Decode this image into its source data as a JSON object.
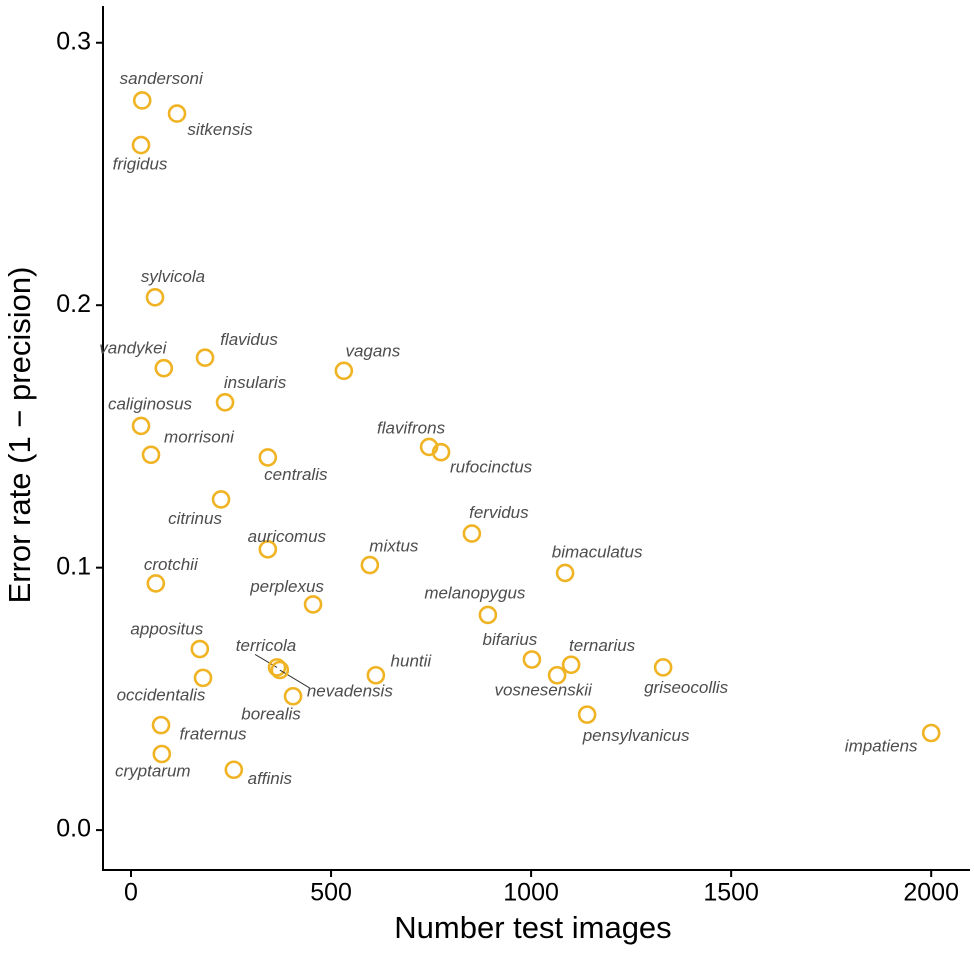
{
  "chart_data": {
    "type": "scatter",
    "xlabel": "Number test images",
    "ylabel": "Error rate (1 − precision)",
    "color": "#f0b323",
    "xlim": [
      -70,
      2097
    ],
    "ylim": [
      -0.0152,
      0.314
    ],
    "xticks": [
      0,
      500,
      1000,
      1500,
      2000
    ],
    "yticks": [
      {
        "value": 0,
        "label": "0.0"
      },
      0.1,
      0.2,
      0.3
    ],
    "labels": [
      "sandersoni",
      "sitkensis",
      "frigidus",
      "sylvicola",
      "vandykei",
      "flavidus",
      "vagans",
      "insularis",
      "caliginosus",
      "morrisoni",
      "centralis",
      "flavifrons",
      "rufocinctus",
      "citrinus",
      "fervidus",
      "auricomus",
      "mixtus",
      "crotchii",
      "bimaculatus",
      "perplexus",
      "melanopygus",
      "appositus",
      "terricola",
      "nevadensis",
      "bifarius",
      "ternarius",
      "griseocollis",
      "huntii",
      "vosnesenskii",
      "occidentalis",
      "borealis",
      "pensylvanicus",
      "impatiens",
      "fraternus",
      "cryptarum",
      "affinis"
    ],
    "x": [
      28,
      115,
      25,
      60,
      82,
      185,
      532,
      235,
      25,
      50,
      342,
      745,
      775,
      225,
      852,
      342,
      597,
      62,
      1085,
      455,
      892,
      172,
      365,
      372,
      1002,
      1100,
      1330,
      612,
      1065,
      180,
      405,
      1140,
      2000,
      75,
      77,
      257
    ],
    "values": [
      0.278,
      0.273,
      0.261,
      0.203,
      0.176,
      0.18,
      0.175,
      0.163,
      0.154,
      0.143,
      0.142,
      0.146,
      0.144,
      0.126,
      0.113,
      0.107,
      0.101,
      0.094,
      0.098,
      0.086,
      0.082,
      0.069,
      0.062,
      0.061,
      0.065,
      0.063,
      0.062,
      0.059,
      0.059,
      0.058,
      0.051,
      0.044,
      0.037,
      0.04,
      0.029,
      0.023
    ]
  }
}
